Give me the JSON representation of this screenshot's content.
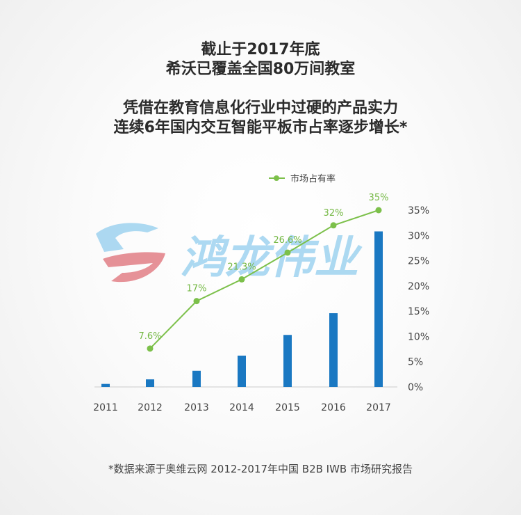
{
  "headline": {
    "line1": "截止于2017年底",
    "line2": "希沃已覆盖全国80万间教室",
    "line3": "凭借在教育信息化行业中过硬的产品实力",
    "line4": "连续6年国内交互智能平板市占率逐步增长*"
  },
  "watermark": {
    "text": "鸿龙伟业"
  },
  "colors": {
    "bar": "#1a78c2",
    "line": "#7cc04a",
    "label": "#74b843",
    "axis_text": "#444444",
    "watermark_blue": "#9fd3f0",
    "watermark_red": "#e27f86"
  },
  "chart_data": {
    "type": "bar+line",
    "categories": [
      "2011",
      "2012",
      "2013",
      "2014",
      "2015",
      "2016",
      "2017"
    ],
    "bars": {
      "values": [
        0.6,
        1.5,
        3.2,
        6.2,
        10.3,
        14.6,
        30.8
      ]
    },
    "line": {
      "name": "市场占有率",
      "values": [
        null,
        7.6,
        17,
        21.3,
        26.6,
        32,
        35
      ],
      "labels": [
        "",
        "7.6%",
        "17%",
        "21.3%",
        "26.6%",
        "32%",
        "35%"
      ]
    },
    "y_axis": {
      "ticks": [
        "0%",
        "5%",
        "10%",
        "15%",
        "20%",
        "25%",
        "30%",
        "35%"
      ],
      "tick_values": [
        0,
        5,
        10,
        15,
        20,
        25,
        30,
        35
      ],
      "ylim": [
        0,
        35
      ]
    },
    "legend_position": "top-center"
  },
  "footnote": "*数据来源于奥维云网 2012-2017年中国 B2B IWB 市场研究报告"
}
